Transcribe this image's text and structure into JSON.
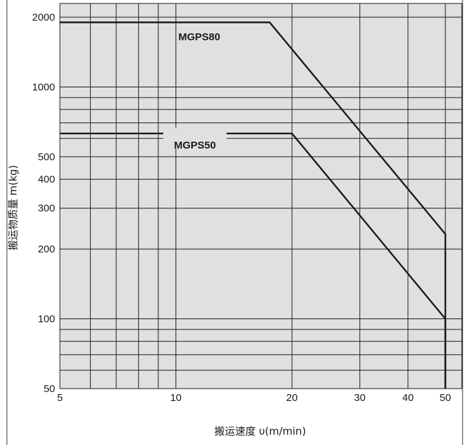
{
  "chart_data": {
    "type": "line",
    "xlabel": "搬运速度 υ(m/min)",
    "ylabel": "搬运物质量 m(kg)",
    "xscale": "log",
    "yscale": "log",
    "xlim": [
      5,
      55
    ],
    "ylim": [
      50,
      2200
    ],
    "grid": true,
    "x_ticks": [
      5,
      6,
      7,
      8,
      9,
      10,
      20,
      30,
      40,
      50
    ],
    "x_tick_labels": [
      "5",
      "",
      "",
      "",
      "",
      "10",
      "20",
      "30",
      "40",
      "50"
    ],
    "y_ticks": [
      50,
      60,
      70,
      80,
      90,
      100,
      200,
      300,
      400,
      500,
      600,
      700,
      800,
      900,
      1000,
      2000
    ],
    "y_tick_labels": [
      "50",
      "",
      "",
      "",
      "",
      "100",
      "200",
      "300",
      "400",
      "500",
      "",
      "",
      "",
      "",
      "1000",
      "2000"
    ],
    "series": [
      {
        "name": "MGPS80",
        "x": [
          5,
          17.5,
          50,
          50
        ],
        "y": [
          1900,
          1900,
          232,
          50
        ]
      },
      {
        "name": "MGPS50",
        "x": [
          5,
          20,
          50,
          50
        ],
        "y": [
          630,
          630,
          100,
          50
        ]
      }
    ],
    "colors": {
      "background": "#e0e0e0",
      "grid": "#1a1a1a",
      "line": "#1a1a1a"
    }
  }
}
